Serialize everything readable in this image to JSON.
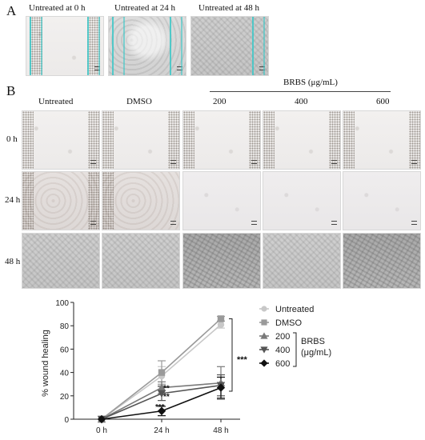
{
  "panel_a": {
    "letter": "A",
    "captions": [
      "Untreated at 0 h",
      "Untreated at 24 h",
      "Untreated at 48 h"
    ]
  },
  "panel_b": {
    "letter": "B",
    "column_headers": [
      "Untreated",
      "DMSO",
      "200",
      "400",
      "600"
    ],
    "group_header": "BRBS (μg/mL)",
    "row_labels": [
      "0 h",
      "24 h",
      "48 h"
    ]
  },
  "chart_data": {
    "type": "line",
    "ylabel": "% wound healing",
    "xlabel": "",
    "categories": [
      "0 h",
      "24 h",
      "48 h"
    ],
    "ylim": [
      0,
      100
    ],
    "yticks": [
      0,
      20,
      40,
      60,
      80,
      100
    ],
    "series": [
      {
        "name": "Untreated",
        "values": [
          0,
          37,
          81
        ],
        "errors": [
          0,
          8,
          3
        ],
        "color": "#c8c8c8",
        "marker": "circle"
      },
      {
        "name": "DMSO",
        "values": [
          0,
          40,
          86
        ],
        "errors": [
          0,
          10,
          2
        ],
        "color": "#9a9a9a",
        "marker": "square"
      },
      {
        "name": "200",
        "values": [
          0,
          27,
          31
        ],
        "errors": [
          0,
          5,
          14
        ],
        "color": "#7a7a7a",
        "marker": "triangle-up"
      },
      {
        "name": "400",
        "values": [
          0,
          22,
          29
        ],
        "errors": [
          0,
          6,
          9
        ],
        "color": "#555555",
        "marker": "triangle-down"
      },
      {
        "name": "600",
        "values": [
          0,
          7,
          27
        ],
        "errors": [
          0,
          4,
          9
        ],
        "color": "#111111",
        "marker": "diamond"
      }
    ],
    "legend_position": "right",
    "legend_group": "BRBS",
    "legend_group_unit": "(μg/mL)",
    "annotations": [
      "**",
      "**",
      "***",
      "***"
    ]
  }
}
